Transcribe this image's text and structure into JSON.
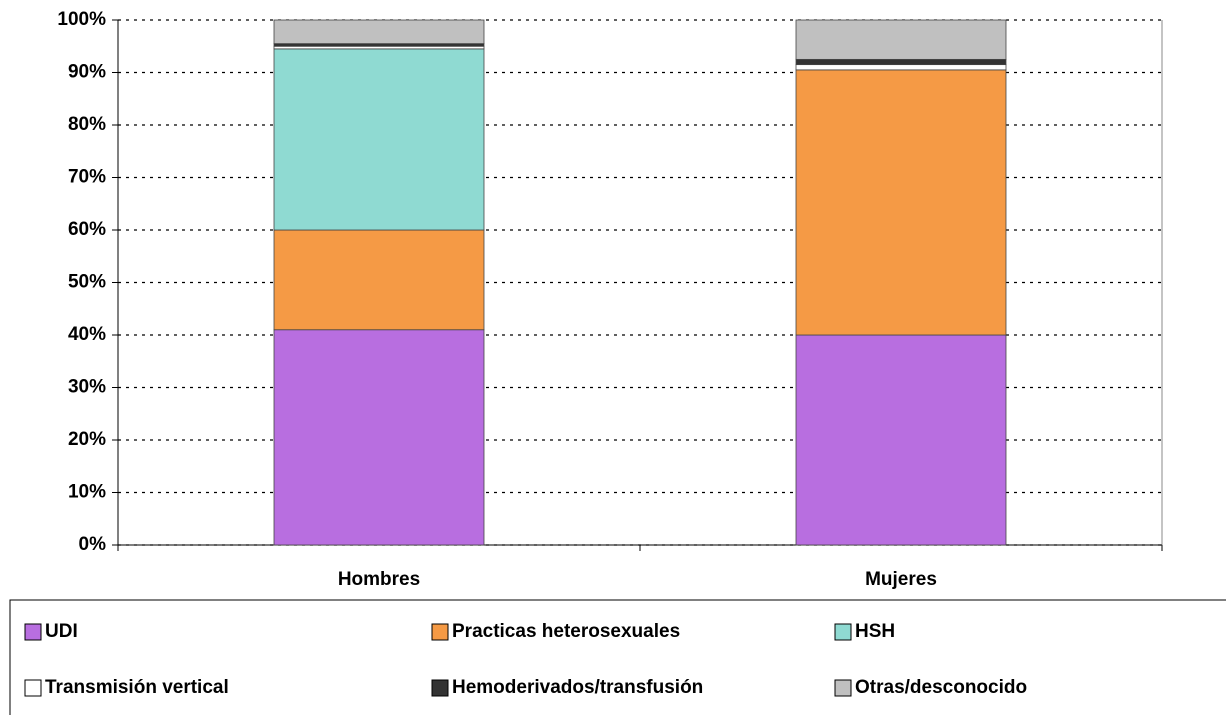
{
  "chart_data": {
    "type": "stacked_bar",
    "categories": [
      "Hombres",
      "Mujeres"
    ],
    "series": [
      {
        "name": "UDI",
        "color": "#b86ee0",
        "values": [
          41,
          40
        ]
      },
      {
        "name": "Practicas heterosexuales",
        "color": "#f59a45",
        "values": [
          19,
          50.5
        ]
      },
      {
        "name": "HSH",
        "color": "#8fdad2",
        "values": [
          34.5,
          0
        ]
      },
      {
        "name": "Transmisión vertical",
        "color": "#ffffff",
        "values": [
          0.5,
          1
        ]
      },
      {
        "name": "Hemoderivados/transfusión",
        "color": "#333333",
        "values": [
          0.5,
          1
        ]
      },
      {
        "name": "Otras/desconocido",
        "color": "#c0c0c0",
        "values": [
          4.5,
          7.5
        ]
      }
    ],
    "ylim": [
      0,
      100
    ],
    "yticks": [
      {
        "value": 0,
        "label": "0%"
      },
      {
        "value": 10,
        "label": "10%"
      },
      {
        "value": 20,
        "label": "20%"
      },
      {
        "value": 30,
        "label": "30%"
      },
      {
        "value": 40,
        "label": "40%"
      },
      {
        "value": 50,
        "label": "50%"
      },
      {
        "value": 60,
        "label": "60%"
      },
      {
        "value": 70,
        "label": "70%"
      },
      {
        "value": 80,
        "label": "80%"
      },
      {
        "value": 90,
        "label": "90%"
      },
      {
        "value": 100,
        "label": "100%"
      }
    ],
    "grid": true
  }
}
